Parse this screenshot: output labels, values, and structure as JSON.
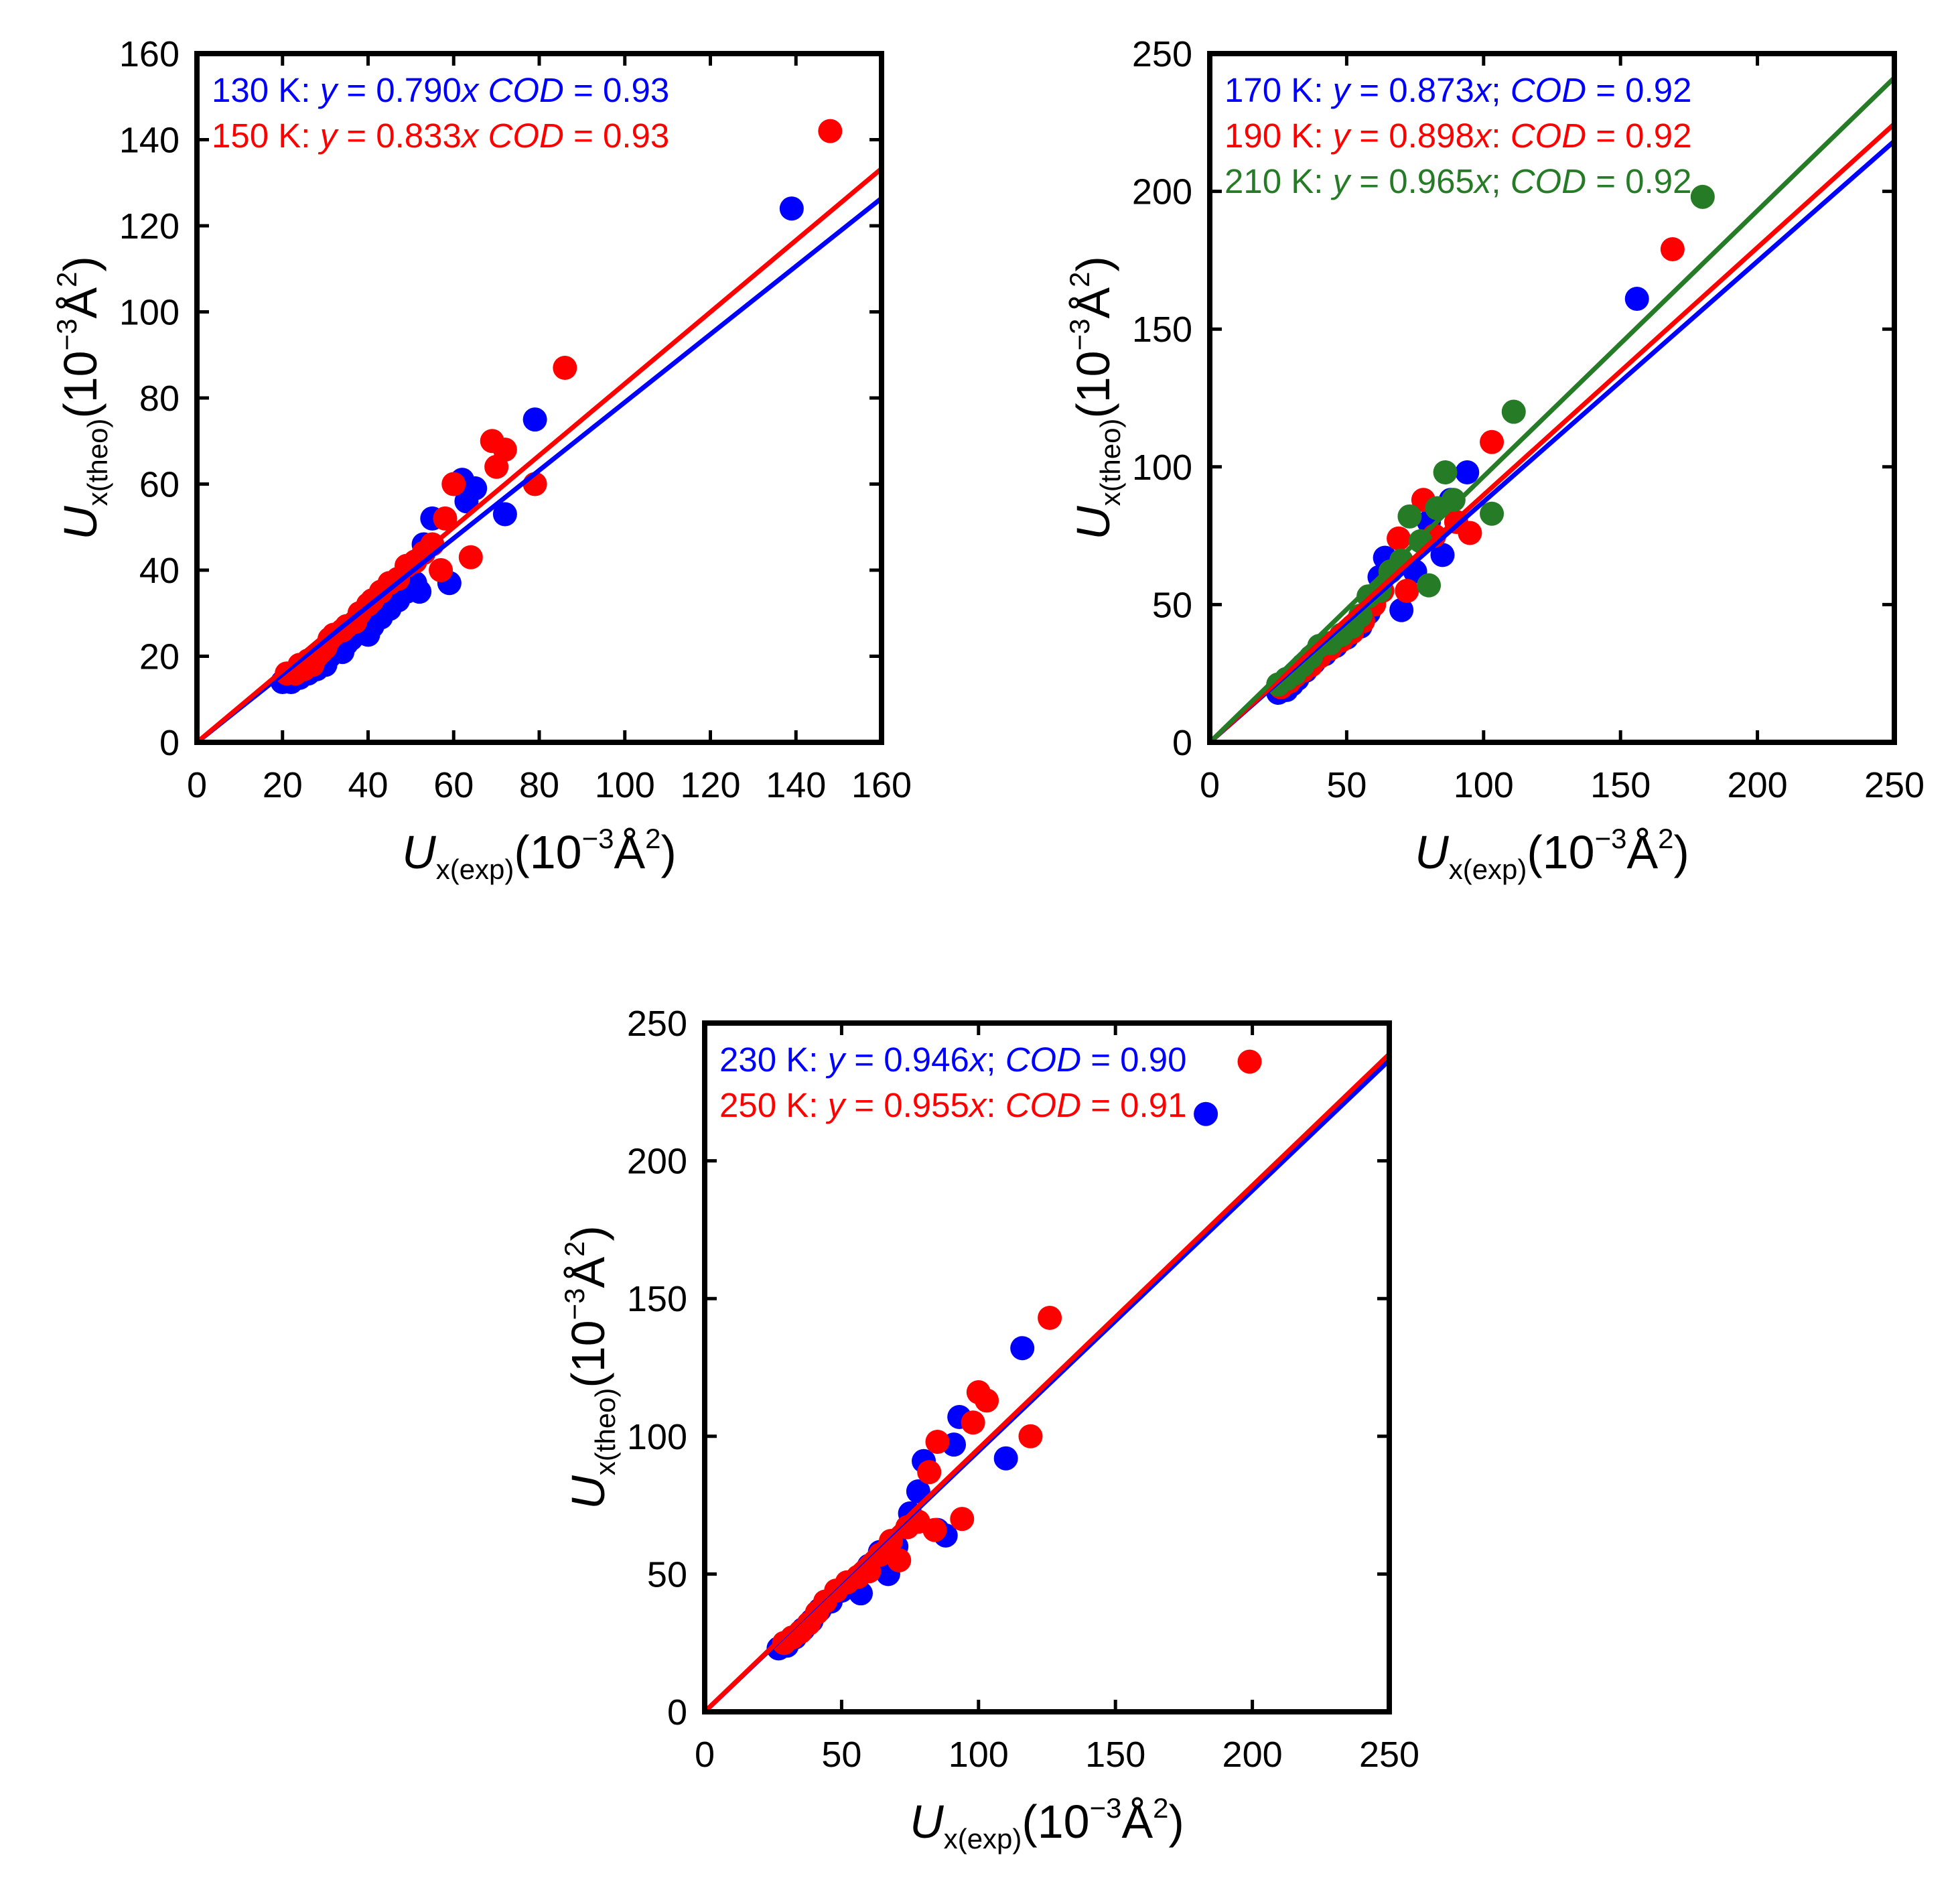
{
  "colors": {
    "blue": "#0000ff",
    "red": "#ff0000",
    "green": "#267b26",
    "axis": "#000000"
  },
  "chart_data": [
    {
      "id": "p1",
      "type": "scatter",
      "xlabel": {
        "main": "U",
        "sub": "x(exp)",
        "unit": "(10",
        "exp": "−3",
        "unit2": "Å",
        "pow": "2",
        "close": ")"
      },
      "ylabel": {
        "main": "U",
        "sub": "x(theo)",
        "unit": "(10",
        "exp": "−3",
        "unit2": "Å",
        "pow": "2",
        "close": ")"
      },
      "xlim": [
        0,
        160
      ],
      "ylim": [
        0,
        160
      ],
      "xticks": [
        0,
        20,
        40,
        60,
        80,
        100,
        120,
        140,
        160
      ],
      "yticks": [
        0,
        20,
        40,
        60,
        80,
        100,
        120,
        140,
        160
      ],
      "xticklabels": [
        "0",
        "20",
        "40",
        "60",
        "80",
        "100",
        "120",
        "140",
        "160"
      ],
      "yticklabels": [
        "0",
        "20",
        "40",
        "60",
        "80",
        "100",
        "120",
        "140",
        "160"
      ],
      "series": [
        {
          "name": "130 K",
          "color": "blue",
          "slope": 0.79,
          "annotation": {
            "temp": "130 K: ",
            "y": "y",
            "eq": " = 0.790",
            "x": "x",
            "sep": "  ",
            "cod": "COD",
            "val": " = 0.93"
          },
          "points": [
            [
              20,
              14
            ],
            [
              21,
              15
            ],
            [
              22,
              14
            ],
            [
              23,
              16
            ],
            [
              24,
              15
            ],
            [
              25,
              17
            ],
            [
              26,
              16
            ],
            [
              27,
              18
            ],
            [
              28,
              17
            ],
            [
              29,
              19
            ],
            [
              30,
              18
            ],
            [
              31,
              20
            ],
            [
              32,
              21
            ],
            [
              33,
              22
            ],
            [
              34,
              21
            ],
            [
              35,
              23
            ],
            [
              36,
              24
            ],
            [
              37,
              25
            ],
            [
              38,
              26
            ],
            [
              40,
              25
            ],
            [
              41,
              27
            ],
            [
              43,
              29
            ],
            [
              45,
              31
            ],
            [
              47,
              33
            ],
            [
              49,
              35
            ],
            [
              51,
              37
            ],
            [
              52,
              35
            ],
            [
              53,
              46
            ],
            [
              55,
              52
            ],
            [
              59,
              37
            ],
            [
              62,
              61
            ],
            [
              63,
              56
            ],
            [
              65,
              59
            ],
            [
              72,
              53
            ],
            [
              79,
              75
            ],
            [
              139,
              124
            ]
          ]
        },
        {
          "name": "150 K",
          "color": "red",
          "slope": 0.833,
          "annotation": {
            "temp": "150 K: ",
            "y": "y",
            "eq": " = 0.833",
            "x": "x",
            "sep": "  ",
            "cod": "COD",
            "val": " = 0.93"
          },
          "points": [
            [
              21,
              16
            ],
            [
              23,
              16
            ],
            [
              24,
              18
            ],
            [
              25,
              17
            ],
            [
              26,
              19
            ],
            [
              27,
              18
            ],
            [
              28,
              20
            ],
            [
              29,
              21
            ],
            [
              30,
              22
            ],
            [
              31,
              24
            ],
            [
              32,
              25
            ],
            [
              34,
              26
            ],
            [
              35,
              27
            ],
            [
              37,
              28
            ],
            [
              38,
              30
            ],
            [
              40,
              32
            ],
            [
              41,
              33
            ],
            [
              43,
              35
            ],
            [
              45,
              37
            ],
            [
              47,
              38
            ],
            [
              49,
              41
            ],
            [
              51,
              42
            ],
            [
              53,
              44
            ],
            [
              55,
              46
            ],
            [
              57,
              40
            ],
            [
              58,
              52
            ],
            [
              60,
              60
            ],
            [
              64,
              43
            ],
            [
              69,
              70
            ],
            [
              70,
              64
            ],
            [
              72,
              68
            ],
            [
              79,
              60
            ],
            [
              86,
              87
            ],
            [
              148,
              142
            ]
          ]
        }
      ]
    },
    {
      "id": "p2",
      "type": "scatter",
      "xlabel": {
        "main": "U",
        "sub": "x(exp)",
        "unit": "(10",
        "exp": "−3",
        "unit2": "Å",
        "pow": "2",
        "close": ")"
      },
      "ylabel": {
        "main": "U",
        "sub": "x(theo)",
        "unit": "(10",
        "exp": "−3",
        "unit2": "Å",
        "pow": "2",
        "close": ")"
      },
      "xlim": [
        0,
        250
      ],
      "ylim": [
        0,
        250
      ],
      "xticks": [
        0,
        50,
        100,
        150,
        200,
        250
      ],
      "yticks": [
        0,
        50,
        100,
        150,
        200,
        250
      ],
      "xticklabels": [
        "0",
        "50",
        "100",
        "150",
        "200",
        "250"
      ],
      "yticklabels": [
        "0",
        "50",
        "100",
        "150",
        "200",
        "250"
      ],
      "series": [
        {
          "name": "170 K",
          "color": "blue",
          "slope": 0.873,
          "annotation": {
            "temp": "170 K: ",
            "y": "y",
            "eq": " = 0.873",
            "x": "x",
            "sep": "; ",
            "cod": "COD",
            "val": " = 0.92"
          },
          "points": [
            [
              25,
              18
            ],
            [
              28,
              19
            ],
            [
              30,
              21
            ],
            [
              32,
              23
            ],
            [
              35,
              26
            ],
            [
              38,
              29
            ],
            [
              42,
              32
            ],
            [
              46,
              35
            ],
            [
              50,
              38
            ],
            [
              55,
              42
            ],
            [
              58,
              47
            ],
            [
              60,
              52
            ],
            [
              62,
              60
            ],
            [
              64,
              67
            ],
            [
              70,
              48
            ],
            [
              75,
              62
            ],
            [
              80,
              80
            ],
            [
              85,
              68
            ],
            [
              88,
              88
            ],
            [
              94,
              98
            ],
            [
              156,
              161
            ]
          ]
        },
        {
          "name": "190 K",
          "color": "red",
          "slope": 0.898,
          "annotation": {
            "temp": "190 K: ",
            "y": "y",
            "eq": " = 0.898",
            "x": "x",
            "sep": ": ",
            "cod": "COD",
            "val": " = 0.92"
          },
          "points": [
            [
              26,
              20
            ],
            [
              29,
              22
            ],
            [
              31,
              24
            ],
            [
              34,
              26
            ],
            [
              37,
              28
            ],
            [
              40,
              31
            ],
            [
              44,
              34
            ],
            [
              48,
              37
            ],
            [
              52,
              40
            ],
            [
              56,
              44
            ],
            [
              60,
              50
            ],
            [
              63,
              55
            ],
            [
              66,
              62
            ],
            [
              69,
              74
            ],
            [
              72,
              55
            ],
            [
              78,
              88
            ],
            [
              82,
              75
            ],
            [
              90,
              80
            ],
            [
              95,
              76
            ],
            [
              103,
              109
            ],
            [
              169,
              179
            ]
          ]
        },
        {
          "name": "210 K",
          "color": "green",
          "slope": 0.965,
          "annotation": {
            "temp": "210 K: ",
            "y": "y",
            "eq": " = 0.965",
            "x": "x",
            "sep": "; ",
            "cod": "COD",
            "val": " = 0.92"
          },
          "points": [
            [
              25,
              21
            ],
            [
              28,
              23
            ],
            [
              31,
              25
            ],
            [
              34,
              28
            ],
            [
              37,
              31
            ],
            [
              40,
              35
            ],
            [
              44,
              36
            ],
            [
              48,
              39
            ],
            [
              52,
              42
            ],
            [
              55,
              46
            ],
            [
              58,
              53
            ],
            [
              62,
              55
            ],
            [
              66,
              62
            ],
            [
              70,
              66
            ],
            [
              73,
              82
            ],
            [
              77,
              73
            ],
            [
              80,
              57
            ],
            [
              83,
              85
            ],
            [
              86,
              98
            ],
            [
              89,
              88
            ],
            [
              103,
              83
            ],
            [
              111,
              120
            ],
            [
              180,
              198
            ]
          ]
        }
      ]
    },
    {
      "id": "p3",
      "type": "scatter",
      "xlabel": {
        "main": "U",
        "sub": "x(exp)",
        "unit": "(10",
        "exp": "−3",
        "unit2": "Å",
        "pow": "2",
        "close": ")"
      },
      "ylabel": {
        "main": "U",
        "sub": "x(theo)",
        "unit": "(10",
        "exp": "−3",
        "unit2": "Å",
        "pow": "2",
        "close": ")"
      },
      "xlim": [
        0,
        250
      ],
      "ylim": [
        0,
        250
      ],
      "xticks": [
        0,
        50,
        100,
        150,
        200,
        250
      ],
      "yticks": [
        0,
        50,
        100,
        150,
        200,
        250
      ],
      "xticklabels": [
        "0",
        "50",
        "100",
        "150",
        "200",
        "250"
      ],
      "yticklabels": [
        "0",
        "50",
        "100",
        "150",
        "200",
        "250"
      ],
      "series": [
        {
          "name": "230 K",
          "color": "blue",
          "slope": 0.946,
          "annotation": {
            "temp": "230 K: ",
            "y": "y",
            "eq": " = 0.946",
            "x": "x",
            "sep": "; ",
            "cod": "COD",
            "val": " = 0.90"
          },
          "points": [
            [
              27,
              23
            ],
            [
              30,
              24
            ],
            [
              33,
              27
            ],
            [
              36,
              30
            ],
            [
              39,
              33
            ],
            [
              42,
              37
            ],
            [
              46,
              40
            ],
            [
              50,
              44
            ],
            [
              54,
              47
            ],
            [
              57,
              43
            ],
            [
              60,
              53
            ],
            [
              64,
              58
            ],
            [
              67,
              50
            ],
            [
              70,
              60
            ],
            [
              75,
              72
            ],
            [
              78,
              80
            ],
            [
              80,
              91
            ],
            [
              85,
              66
            ],
            [
              88,
              64
            ],
            [
              91,
              97
            ],
            [
              93,
              107
            ],
            [
              110,
              92
            ],
            [
              116,
              132
            ],
            [
              183,
              217
            ]
          ]
        },
        {
          "name": "250 K",
          "color": "red",
          "slope": 0.955,
          "annotation": {
            "temp": "250 K: ",
            "y": "y",
            "eq": " = 0.955",
            "x": "x",
            "sep": ": ",
            "cod": "COD",
            "val": " = 0.91"
          },
          "points": [
            [
              29,
              25
            ],
            [
              32,
              27
            ],
            [
              35,
              29
            ],
            [
              38,
              32
            ],
            [
              41,
              36
            ],
            [
              44,
              40
            ],
            [
              48,
              44
            ],
            [
              52,
              47
            ],
            [
              56,
              49
            ],
            [
              60,
              51
            ],
            [
              64,
              57
            ],
            [
              68,
              62
            ],
            [
              71,
              55
            ],
            [
              74,
              67
            ],
            [
              78,
              69
            ],
            [
              82,
              87
            ],
            [
              84,
              66
            ],
            [
              85,
              98
            ],
            [
              94,
              70
            ],
            [
              98,
              105
            ],
            [
              100,
              116
            ],
            [
              103,
              113
            ],
            [
              119,
              100
            ],
            [
              126,
              143
            ],
            [
              199,
              236
            ]
          ]
        }
      ]
    }
  ]
}
